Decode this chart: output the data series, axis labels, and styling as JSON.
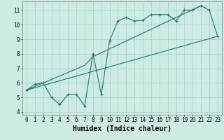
{
  "xlabel": "Humidex (Indice chaleur)",
  "background_color": "#ceeae4",
  "grid_color": "#aad4cc",
  "line_color": "#1a7a6a",
  "xlim": [
    -0.5,
    23.5
  ],
  "ylim": [
    3.8,
    11.6
  ],
  "xticks": [
    0,
    1,
    2,
    3,
    4,
    5,
    6,
    7,
    8,
    9,
    10,
    11,
    12,
    13,
    14,
    15,
    16,
    17,
    18,
    19,
    20,
    21,
    22,
    23
  ],
  "yticks": [
    4,
    5,
    6,
    7,
    8,
    9,
    10,
    11
  ],
  "curve1_x": [
    0,
    1,
    2,
    3,
    4,
    5,
    6,
    7,
    8,
    9,
    10,
    11,
    12,
    13,
    14,
    15,
    16,
    17,
    18,
    19,
    20,
    21,
    22,
    23
  ],
  "curve1_y": [
    5.5,
    5.9,
    6.0,
    5.0,
    4.5,
    5.2,
    5.2,
    4.4,
    8.0,
    5.2,
    8.9,
    10.25,
    10.5,
    10.25,
    10.3,
    10.7,
    10.7,
    10.7,
    10.25,
    11.0,
    11.0,
    11.3,
    11.0,
    9.2
  ],
  "curve2_x": [
    0,
    23
  ],
  "curve2_y": [
    5.5,
    9.2
  ],
  "curve3_x": [
    0,
    7,
    8,
    21
  ],
  "curve3_y": [
    5.5,
    7.2,
    7.8,
    11.3
  ],
  "font_size_axis": 5.5,
  "font_size_label": 7
}
